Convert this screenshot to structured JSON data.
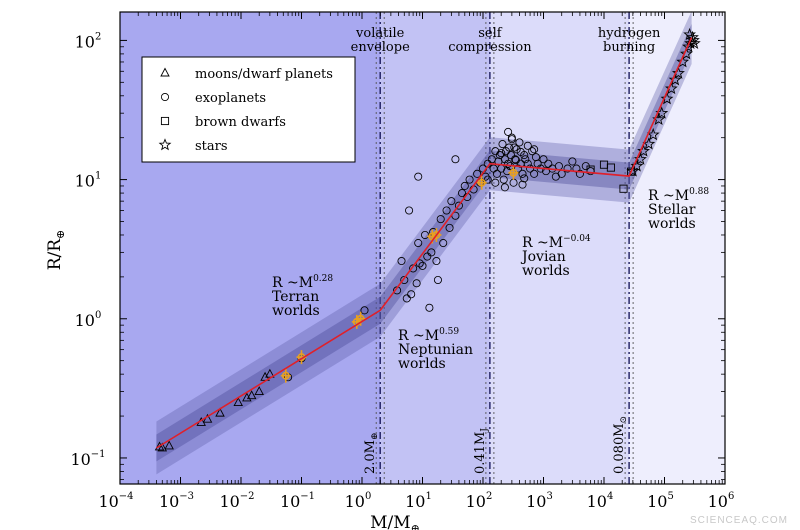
{
  "watermark": "SCIENCEAQ.COM",
  "chart_data": {
    "type": "scatter",
    "title": "",
    "xlabel": "M/M",
    "xlabel_sub": "⊕",
    "ylabel": "R/R",
    "ylabel_sub": "⊕",
    "xscale": "log",
    "yscale": "log",
    "xlim": [
      0.0001,
      1000000
    ],
    "ylim": [
      0.065,
      160
    ],
    "x_ticks": [
      {
        "base": "10",
        "exp": "−4"
      },
      {
        "base": "10",
        "exp": "−3"
      },
      {
        "base": "10",
        "exp": "−2"
      },
      {
        "base": "10",
        "exp": "−1"
      },
      {
        "base": "10",
        "exp": "0"
      },
      {
        "base": "10",
        "exp": "1"
      },
      {
        "base": "10",
        "exp": "2"
      },
      {
        "base": "10",
        "exp": "3"
      },
      {
        "base": "10",
        "exp": "4"
      },
      {
        "base": "10",
        "exp": "5"
      },
      {
        "base": "10",
        "exp": "6"
      }
    ],
    "y_ticks": [
      {
        "base": "10",
        "exp": "−1"
      },
      {
        "base": "10",
        "exp": "0"
      },
      {
        "base": "10",
        "exp": "1"
      },
      {
        "base": "10",
        "exp": "2"
      }
    ],
    "regions": [
      {
        "from": 0.0001,
        "to": 2.0,
        "color": "#a8a8f0"
      },
      {
        "from": 2.0,
        "to": 130,
        "color": "#c2c2f4"
      },
      {
        "from": 130,
        "to": 26000,
        "color": "#dcdcfa"
      },
      {
        "from": 26000,
        "to": 1000000,
        "color": "#eeeefd"
      }
    ],
    "transitions": [
      {
        "x": 2.0,
        "label": "2.0M",
        "label_sub": "⊕",
        "top": [
          "volatile",
          "envelope"
        ]
      },
      {
        "x": 130,
        "label": "0.41M",
        "label_sub": "J",
        "top": [
          "self",
          "compression"
        ]
      },
      {
        "x": 26000,
        "label": "0.080M",
        "label_sub": "⊙",
        "top": [
          "hydrogen",
          "burning"
        ]
      }
    ],
    "fit_line": [
      [
        0.0004,
        0.118
      ],
      [
        2.0,
        1.15
      ],
      [
        130,
        13.0
      ],
      [
        26000,
        10.6
      ],
      [
        280000,
        105
      ]
    ],
    "legend": {
      "position": "upper-left",
      "entries": [
        {
          "marker": "triangle",
          "label": "moons/dwarf planets"
        },
        {
          "marker": "circle",
          "label": "exoplanets"
        },
        {
          "marker": "square",
          "label": "brown dwarfs"
        },
        {
          "marker": "star",
          "label": "stars"
        }
      ]
    },
    "annotations": [
      {
        "lines": [
          "R ~M",
          "Terran",
          "worlds"
        ],
        "exp": "0.28",
        "x": 1.7,
        "y": 0.44
      },
      {
        "lines": [
          "R ~M",
          "Neptunian",
          "worlds"
        ],
        "exp": "0.59",
        "x": 9,
        "y": 0.075
      },
      {
        "lines": [
          "R ~M",
          "Jovian",
          "worlds"
        ],
        "exp": "−0.04",
        "x": 1800,
        "y": 0.57
      },
      {
        "lines": [
          "R ~M",
          "Stellar",
          "worlds"
        ],
        "exp": "0.88",
        "x": 22,
        "y": 0.78
      }
    ],
    "series": [
      {
        "marker": "triangle",
        "points": [
          [
            0.00045,
            0.12
          ],
          [
            0.0005,
            0.118
          ],
          [
            0.00065,
            0.122
          ],
          [
            0.0022,
            0.18
          ],
          [
            0.0028,
            0.19
          ],
          [
            0.0045,
            0.21
          ],
          [
            0.009,
            0.25
          ],
          [
            0.015,
            0.28
          ],
          [
            0.02,
            0.3
          ],
          [
            0.025,
            0.38
          ],
          [
            0.03,
            0.4
          ],
          [
            0.0125,
            0.27
          ]
        ]
      },
      {
        "marker": "circle",
        "points": [
          [
            0.06,
            0.38
          ],
          [
            0.1,
            0.52
          ],
          [
            1.1,
            1.15
          ],
          [
            3.8,
            1.6
          ],
          [
            4.5,
            2.6
          ],
          [
            5,
            1.9
          ],
          [
            5.5,
            1.4
          ],
          [
            6.5,
            1.5
          ],
          [
            7,
            2.3
          ],
          [
            8,
            1.8
          ],
          [
            8.5,
            3.5
          ],
          [
            9,
            2.5
          ],
          [
            10,
            2.4
          ],
          [
            11,
            4.0
          ],
          [
            12,
            2.8
          ],
          [
            13,
            1.2
          ],
          [
            14,
            3.0
          ],
          [
            15,
            4.2
          ],
          [
            17,
            2.6
          ],
          [
            18,
            1.9
          ],
          [
            20,
            5.2
          ],
          [
            22,
            3.5
          ],
          [
            25,
            6.0
          ],
          [
            28,
            4.5
          ],
          [
            30,
            7.0
          ],
          [
            35,
            5.5
          ],
          [
            40,
            6.5
          ],
          [
            45,
            8.0
          ],
          [
            50,
            9.0
          ],
          [
            55,
            7.5
          ],
          [
            60,
            10.0
          ],
          [
            70,
            8.5
          ],
          [
            80,
            11.0
          ],
          [
            90,
            9.5
          ],
          [
            100,
            12.0
          ],
          [
            110,
            10.5
          ],
          [
            120,
            13.0
          ],
          [
            8.5,
            10.5
          ],
          [
            6,
            6.0
          ],
          [
            35,
            14
          ],
          [
            140,
            14
          ],
          [
            150,
            12
          ],
          [
            160,
            16
          ],
          [
            170,
            11
          ],
          [
            180,
            13.5
          ],
          [
            190,
            15
          ],
          [
            200,
            12
          ],
          [
            210,
            18
          ],
          [
            220,
            10
          ],
          [
            230,
            14
          ],
          [
            240,
            16
          ],
          [
            250,
            11.5
          ],
          [
            260,
            13
          ],
          [
            270,
            17
          ],
          [
            280,
            12.5
          ],
          [
            290,
            15
          ],
          [
            300,
            20
          ],
          [
            320,
            9.5
          ],
          [
            340,
            14
          ],
          [
            360,
            16.5
          ],
          [
            380,
            12
          ],
          [
            400,
            18.5
          ],
          [
            420,
            13
          ],
          [
            450,
            11
          ],
          [
            480,
            15
          ],
          [
            500,
            14
          ],
          [
            550,
            13
          ],
          [
            600,
            12
          ],
          [
            650,
            16
          ],
          [
            700,
            11
          ],
          [
            750,
            14.5
          ],
          [
            800,
            13
          ],
          [
            900,
            12
          ],
          [
            1000,
            14
          ],
          [
            1100,
            11.5
          ],
          [
            1200,
            13
          ],
          [
            1400,
            12
          ],
          [
            1600,
            10.5
          ],
          [
            1800,
            12.5
          ],
          [
            2000,
            11
          ],
          [
            2500,
            12
          ],
          [
            3000,
            13.5
          ],
          [
            3500,
            12
          ],
          [
            4000,
            11
          ],
          [
            5000,
            12.5
          ],
          [
            6000,
            11.5
          ],
          [
            260,
            22
          ],
          [
            300,
            19.5
          ],
          [
            330,
            17
          ],
          [
            230,
            8.8
          ],
          [
            450,
            9.2
          ],
          [
            550,
            17.5
          ],
          [
            700,
            16.5
          ],
          [
            120,
            10
          ],
          [
            160,
            9.5
          ],
          [
            200,
            15.5
          ],
          [
            350,
            13.8
          ],
          [
            420,
            15.8
          ],
          [
            480,
            10.2
          ]
        ]
      },
      {
        "marker": "square",
        "points": [
          [
            13000,
            12.2
          ],
          [
            21000,
            8.6
          ],
          [
            28000,
            11.4
          ],
          [
            10000,
            12.8
          ],
          [
            6000,
            11.8
          ]
        ]
      },
      {
        "marker": "star",
        "points": [
          [
            30000,
            11.5
          ],
          [
            35000,
            12.5
          ],
          [
            40000,
            14
          ],
          [
            45000,
            16
          ],
          [
            55000,
            18
          ],
          [
            65000,
            21
          ],
          [
            80000,
            27
          ],
          [
            90000,
            30
          ],
          [
            110000,
            38
          ],
          [
            130000,
            45
          ],
          [
            150000,
            52
          ],
          [
            170000,
            58
          ],
          [
            200000,
            70
          ],
          [
            230000,
            80
          ],
          [
            250000,
            90
          ],
          [
            270000,
            95
          ],
          [
            290000,
            105
          ],
          [
            300000,
            100
          ],
          [
            260000,
            110
          ],
          [
            310000,
            95
          ]
        ]
      },
      {
        "marker": "solar",
        "points": [
          [
            0.055,
            0.39
          ],
          [
            0.1,
            0.53
          ],
          [
            0.82,
            0.95
          ],
          [
            0.95,
            1.0
          ],
          [
            14.5,
            3.9
          ],
          [
            17,
            4.0
          ],
          [
            95,
            9.5
          ],
          [
            318,
            11.2
          ]
        ]
      }
    ]
  }
}
